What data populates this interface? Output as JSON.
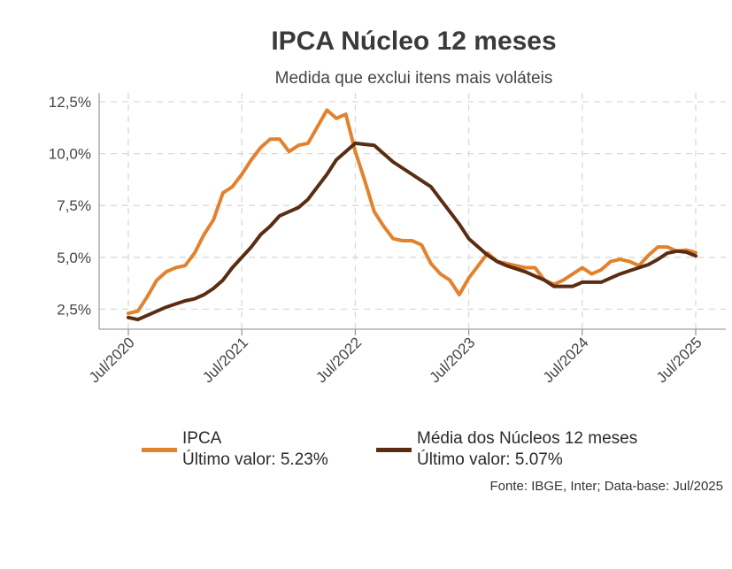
{
  "chart_data": {
    "type": "line",
    "title": "IPCA Núcleo 12 meses",
    "subtitle": "Medida que exclui itens mais voláteis",
    "xlabel": "",
    "ylabel": "",
    "x_tick_labels": [
      "Jul/2020",
      "Jul/2021",
      "Jul/2022",
      "Jul/2023",
      "Jul/2024",
      "Jul/2025"
    ],
    "y_tick_labels": [
      "2,5%",
      "5,0%",
      "7,5%",
      "10,0%",
      "12,5%"
    ],
    "y_ticks": [
      2.5,
      5.0,
      7.5,
      10.0,
      12.5
    ],
    "ylim": [
      1.9,
      12.9
    ],
    "x_range": [
      "Jul/2020",
      "Jul/2025"
    ],
    "grid": true,
    "legend_position": "bottom",
    "series": [
      {
        "name": "IPCA",
        "color": "#E3822E",
        "points": [
          [
            "2020-07",
            2.3
          ],
          [
            "2020-08",
            2.4
          ],
          [
            "2020-09",
            3.1
          ],
          [
            "2020-10",
            3.9
          ],
          [
            "2020-11",
            4.3
          ],
          [
            "2020-12",
            4.5
          ],
          [
            "2021-01",
            4.6
          ],
          [
            "2021-02",
            5.2
          ],
          [
            "2021-03",
            6.1
          ],
          [
            "2021-04",
            6.8
          ],
          [
            "2021-05",
            8.1
          ],
          [
            "2021-06",
            8.4
          ],
          [
            "2021-07",
            9.0
          ],
          [
            "2021-08",
            9.7
          ],
          [
            "2021-09",
            10.3
          ],
          [
            "2021-10",
            10.7
          ],
          [
            "2021-11",
            10.7
          ],
          [
            "2021-12",
            10.1
          ],
          [
            "2022-01",
            10.4
          ],
          [
            "2022-02",
            10.5
          ],
          [
            "2022-03",
            11.3
          ],
          [
            "2022-04",
            12.1
          ],
          [
            "2022-05",
            11.7
          ],
          [
            "2022-06",
            11.9
          ],
          [
            "2022-07",
            10.1
          ],
          [
            "2022-08",
            8.7
          ],
          [
            "2022-09",
            7.2
          ],
          [
            "2022-10",
            6.5
          ],
          [
            "2022-11",
            5.9
          ],
          [
            "2022-12",
            5.8
          ],
          [
            "2023-01",
            5.8
          ],
          [
            "2023-02",
            5.6
          ],
          [
            "2023-03",
            4.7
          ],
          [
            "2023-04",
            4.2
          ],
          [
            "2023-05",
            3.9
          ],
          [
            "2023-06",
            3.2
          ],
          [
            "2023-07",
            4.0
          ],
          [
            "2023-08",
            4.6
          ],
          [
            "2023-09",
            5.2
          ],
          [
            "2023-10",
            4.8
          ],
          [
            "2023-11",
            4.7
          ],
          [
            "2023-12",
            4.6
          ],
          [
            "2024-01",
            4.5
          ],
          [
            "2024-02",
            4.5
          ],
          [
            "2024-03",
            3.9
          ],
          [
            "2024-04",
            3.7
          ],
          [
            "2024-05",
            3.9
          ],
          [
            "2024-06",
            4.2
          ],
          [
            "2024-07",
            4.5
          ],
          [
            "2024-08",
            4.2
          ],
          [
            "2024-09",
            4.4
          ],
          [
            "2024-10",
            4.8
          ],
          [
            "2024-11",
            4.9
          ],
          [
            "2024-12",
            4.8
          ],
          [
            "2025-01",
            4.6
          ],
          [
            "2025-02",
            5.1
          ],
          [
            "2025-03",
            5.5
          ],
          [
            "2025-04",
            5.5
          ],
          [
            "2025-05",
            5.3
          ],
          [
            "2025-06",
            5.35
          ],
          [
            "2025-07",
            5.23
          ]
        ]
      },
      {
        "name": "Média dos Núcleos 12 meses",
        "color": "#5A2D12",
        "points": [
          [
            "2020-07",
            2.1
          ],
          [
            "2020-08",
            2.0
          ],
          [
            "2020-09",
            2.2
          ],
          [
            "2020-10",
            2.4
          ],
          [
            "2020-11",
            2.6
          ],
          [
            "2020-12",
            2.75
          ],
          [
            "2021-01",
            2.9
          ],
          [
            "2021-02",
            3.0
          ],
          [
            "2021-03",
            3.2
          ],
          [
            "2021-04",
            3.5
          ],
          [
            "2021-05",
            3.9
          ],
          [
            "2021-06",
            4.5
          ],
          [
            "2021-07",
            5.0
          ],
          [
            "2021-08",
            5.5
          ],
          [
            "2021-09",
            6.1
          ],
          [
            "2021-10",
            6.5
          ],
          [
            "2021-11",
            7.0
          ],
          [
            "2021-12",
            7.2
          ],
          [
            "2022-01",
            7.4
          ],
          [
            "2022-02",
            7.8
          ],
          [
            "2022-03",
            8.4
          ],
          [
            "2022-04",
            9.0
          ],
          [
            "2022-05",
            9.7
          ],
          [
            "2022-06",
            10.1
          ],
          [
            "2022-07",
            10.5
          ],
          [
            "2022-08",
            10.45
          ],
          [
            "2022-09",
            10.4
          ],
          [
            "2022-10",
            10.0
          ],
          [
            "2022-11",
            9.6
          ],
          [
            "2022-12",
            9.3
          ],
          [
            "2023-01",
            9.0
          ],
          [
            "2023-02",
            8.7
          ],
          [
            "2023-03",
            8.4
          ],
          [
            "2023-04",
            7.8
          ],
          [
            "2023-05",
            7.2
          ],
          [
            "2023-06",
            6.6
          ],
          [
            "2023-07",
            5.9
          ],
          [
            "2023-08",
            5.5
          ],
          [
            "2023-09",
            5.1
          ],
          [
            "2023-10",
            4.8
          ],
          [
            "2023-11",
            4.6
          ],
          [
            "2023-12",
            4.45
          ],
          [
            "2024-01",
            4.3
          ],
          [
            "2024-02",
            4.1
          ],
          [
            "2024-03",
            3.9
          ],
          [
            "2024-04",
            3.6
          ],
          [
            "2024-05",
            3.6
          ],
          [
            "2024-06",
            3.6
          ],
          [
            "2024-07",
            3.8
          ],
          [
            "2024-08",
            3.8
          ],
          [
            "2024-09",
            3.8
          ],
          [
            "2024-10",
            4.0
          ],
          [
            "2024-11",
            4.2
          ],
          [
            "2024-12",
            4.35
          ],
          [
            "2025-01",
            4.5
          ],
          [
            "2025-02",
            4.65
          ],
          [
            "2025-03",
            4.9
          ],
          [
            "2025-04",
            5.2
          ],
          [
            "2025-05",
            5.3
          ],
          [
            "2025-06",
            5.25
          ],
          [
            "2025-07",
            5.07
          ]
        ]
      }
    ]
  },
  "legend": [
    {
      "name": "IPCA",
      "last_value": "Último valor: 5.23%",
      "color": "#E3822E"
    },
    {
      "name": "Média dos Núcleos 12 meses",
      "last_value": "Último valor: 5.07%",
      "color": "#5A2D12"
    }
  ],
  "source": "Fonte: IBGE, Inter; Data-base: Jul/2025"
}
